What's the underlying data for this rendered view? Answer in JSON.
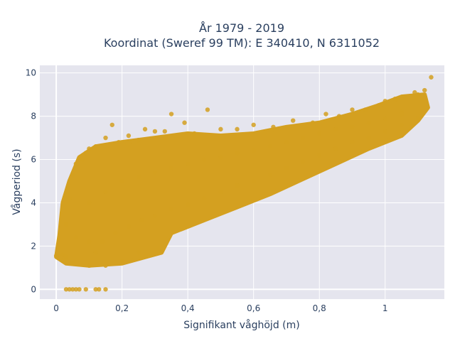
{
  "chart_data": {
    "type": "scatter",
    "title_line1": "År 1979 - 2019",
    "title_line2": "Koordinat (Sweref 99 TM): E 340410, N 6311052",
    "xlabel": "Signifikant våghöjd (m)",
    "ylabel": "Vågperiod (s)",
    "xlim": [
      -0.05,
      1.18
    ],
    "ylim": [
      -0.45,
      10.35
    ],
    "xticks": [
      0,
      0.2,
      0.4,
      0.6,
      0.8,
      1
    ],
    "xtick_labels": [
      "0",
      "0,2",
      "0,4",
      "0,6",
      "0,8",
      "1"
    ],
    "yticks": [
      0,
      2,
      4,
      6,
      8,
      10
    ],
    "ytick_labels": [
      "0",
      "2",
      "4",
      "6",
      "8",
      "10"
    ],
    "grid": true,
    "marker_color": "#D4A020",
    "plot_bg": "#E5E5EE",
    "points": [
      [
        0.03,
        0.0
      ],
      [
        0.04,
        0.0
      ],
      [
        0.05,
        0.0
      ],
      [
        0.06,
        0.0
      ],
      [
        0.07,
        0.0
      ],
      [
        0.09,
        0.0
      ],
      [
        0.12,
        0.0
      ],
      [
        0.13,
        0.0
      ],
      [
        0.15,
        0.0
      ],
      [
        0.03,
        1.5
      ],
      [
        0.0,
        1.55
      ],
      [
        0.02,
        1.6
      ],
      [
        0.05,
        1.2
      ],
      [
        0.1,
        1.1
      ],
      [
        0.15,
        1.1
      ],
      [
        0.2,
        1.3
      ],
      [
        0.25,
        1.7
      ],
      [
        0.32,
        1.75
      ],
      [
        0.12,
        1.7
      ],
      [
        0.03,
        3.0
      ],
      [
        0.04,
        4.2
      ],
      [
        0.05,
        5.3
      ],
      [
        0.06,
        5.8
      ],
      [
        0.08,
        6.0
      ],
      [
        0.09,
        6.3
      ],
      [
        0.1,
        6.5
      ],
      [
        0.12,
        6.6
      ],
      [
        0.15,
        7.0
      ],
      [
        0.17,
        7.6
      ],
      [
        0.19,
        6.8
      ],
      [
        0.22,
        7.1
      ],
      [
        0.25,
        6.9
      ],
      [
        0.27,
        7.4
      ],
      [
        0.3,
        7.3
      ],
      [
        0.33,
        7.3
      ],
      [
        0.35,
        8.1
      ],
      [
        0.39,
        7.7
      ],
      [
        0.42,
        7.2
      ],
      [
        0.46,
        8.3
      ],
      [
        0.5,
        7.4
      ],
      [
        0.55,
        7.4
      ],
      [
        0.6,
        7.6
      ],
      [
        0.66,
        7.5
      ],
      [
        0.72,
        7.8
      ],
      [
        0.78,
        7.7
      ],
      [
        0.82,
        8.1
      ],
      [
        0.86,
        8.0
      ],
      [
        0.9,
        8.3
      ],
      [
        0.94,
        8.3
      ],
      [
        0.98,
        8.5
      ],
      [
        1.0,
        8.7
      ],
      [
        1.03,
        8.8
      ],
      [
        1.06,
        8.9
      ],
      [
        1.09,
        9.1
      ],
      [
        1.12,
        9.2
      ],
      [
        1.14,
        9.8
      ],
      [
        1.1,
        9.0
      ],
      [
        1.05,
        8.2
      ],
      [
        0.06,
        2.4
      ],
      [
        0.1,
        2.2
      ],
      [
        0.14,
        2.2
      ],
      [
        0.18,
        2.6
      ],
      [
        0.22,
        2.9
      ],
      [
        0.26,
        3.2
      ],
      [
        0.3,
        3.4
      ],
      [
        0.35,
        3.7
      ],
      [
        0.4,
        3.9
      ],
      [
        0.45,
        4.2
      ],
      [
        0.5,
        4.5
      ],
      [
        0.55,
        4.8
      ],
      [
        0.6,
        5.0
      ],
      [
        0.65,
        5.3
      ],
      [
        0.7,
        5.6
      ],
      [
        0.75,
        5.9
      ],
      [
        0.8,
        6.2
      ],
      [
        0.85,
        6.5
      ],
      [
        0.9,
        6.8
      ],
      [
        0.95,
        7.0
      ],
      [
        1.0,
        7.3
      ],
      [
        1.05,
        7.6
      ],
      [
        1.1,
        7.9
      ],
      [
        0.1,
        4.0
      ],
      [
        0.15,
        4.5
      ],
      [
        0.2,
        5.0
      ],
      [
        0.25,
        5.2
      ],
      [
        0.3,
        5.4
      ],
      [
        0.35,
        5.6
      ],
      [
        0.4,
        5.8
      ],
      [
        0.45,
        6.0
      ],
      [
        0.5,
        6.1
      ],
      [
        0.55,
        6.3
      ],
      [
        0.6,
        6.4
      ],
      [
        0.65,
        6.6
      ],
      [
        0.7,
        6.8
      ],
      [
        0.75,
        7.0
      ],
      [
        0.8,
        7.2
      ],
      [
        0.85,
        7.4
      ],
      [
        0.9,
        7.5
      ],
      [
        0.95,
        7.7
      ],
      [
        1.0,
        7.9
      ],
      [
        1.05,
        8.1
      ]
    ]
  }
}
